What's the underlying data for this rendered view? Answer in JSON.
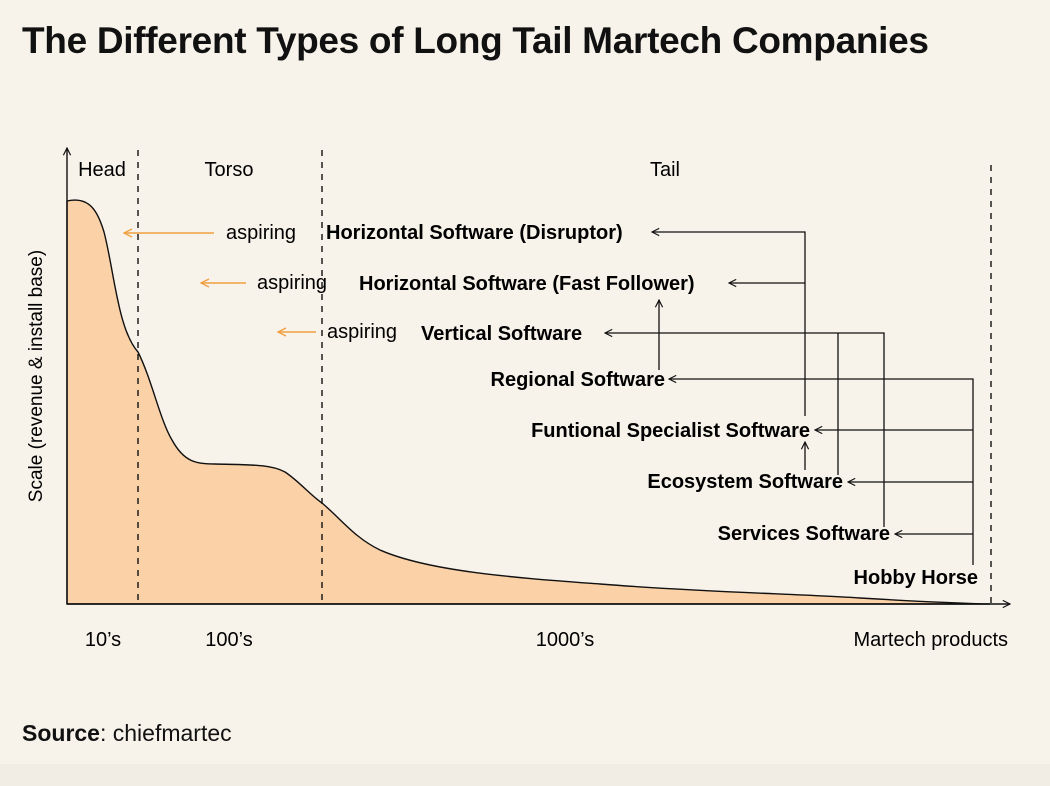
{
  "title": "The Different Types of Long Tail Martech Companies",
  "colors": {
    "background": "#f7f2ea",
    "curve_fill": "#fbd2a8",
    "aspiring_arrow": "#f0a040",
    "ink": "#111111"
  },
  "axes": {
    "y_label": "Scale (revenue & install base)",
    "x_label": "Martech products"
  },
  "sections": [
    {
      "name": "Head",
      "count": "10’s"
    },
    {
      "name": "Torso",
      "count": "100’s"
    },
    {
      "name": "Tail",
      "count": "1000’s"
    }
  ],
  "aspiring": [
    {
      "label": "aspiring",
      "target": "Horizontal Software (Disruptor)"
    },
    {
      "label": "aspiring",
      "target": "Horizontal Software (Fast Follower)"
    },
    {
      "label": "aspiring",
      "target": "Vertical Software"
    }
  ],
  "company_types": [
    "Horizontal Software (Disruptor)",
    "Horizontal Software (Fast Follower)",
    "Vertical Software",
    "Regional Software",
    "Funtional Specialist Software",
    "Ecosystem Software",
    "Services Software",
    "Hobby Horse"
  ],
  "source": {
    "label": "Source",
    "value": ": chiefmartec"
  }
}
